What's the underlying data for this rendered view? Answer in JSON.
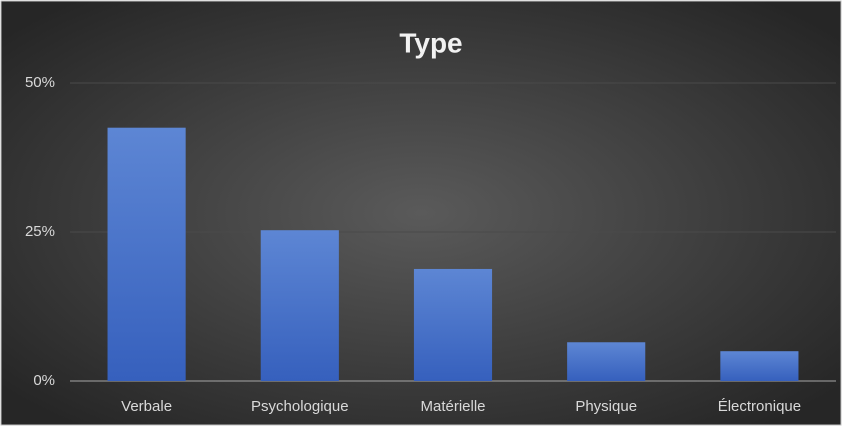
{
  "chart_data": {
    "type": "bar",
    "title": "Type",
    "categories": [
      "Verbale",
      "Psychologique",
      "Matérielle",
      "Physique",
      "Électronique"
    ],
    "values": [
      42.5,
      25.3,
      18.8,
      6.5,
      5
    ],
    "color": "#4472c4",
    "ylim": [
      0,
      50
    ],
    "yticks": [
      {
        "value": 0,
        "label": "0%"
      },
      {
        "value": 25,
        "label": "25%"
      },
      {
        "value": 50,
        "label": "50%"
      }
    ],
    "grid": true
  }
}
